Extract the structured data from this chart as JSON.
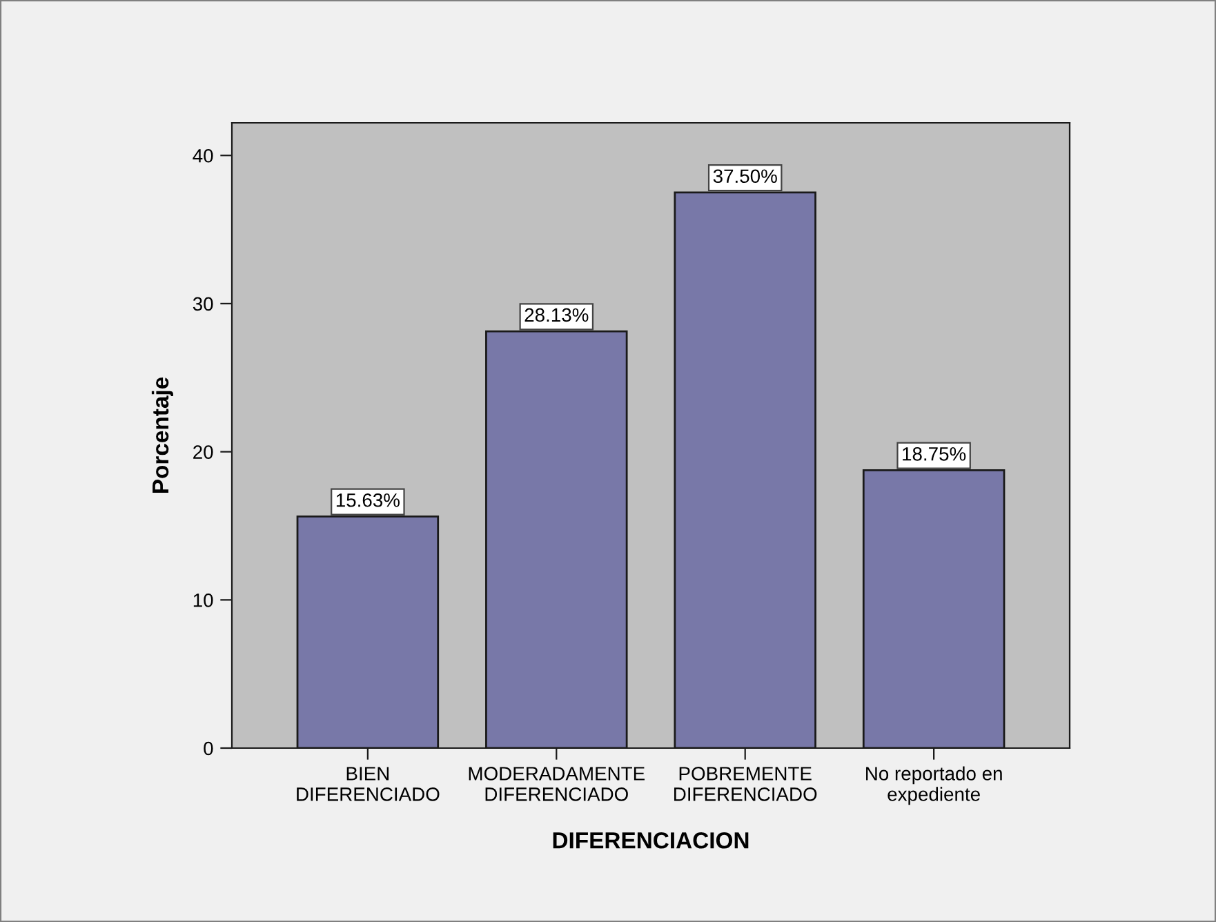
{
  "chart_data": {
    "type": "bar",
    "xlabel": "DIFERENCIACION",
    "ylabel": "Porcentaje",
    "categories": [
      "BIEN\nDIFERENCIADO",
      "MODERADAMENTE\nDIFERENCIADO",
      "POBREMENTE\nDIFERENCIADO",
      "No reportado en\nexpediente"
    ],
    "values": [
      15.63,
      28.13,
      37.5,
      18.75
    ],
    "value_labels": [
      "15.63%",
      "28.13%",
      "37.50%",
      "18.75%"
    ],
    "color": "#7878a8",
    "ylim": [
      0,
      42.2
    ],
    "yticks": [
      0,
      10,
      20,
      30,
      40
    ],
    "grid": false,
    "legend": false
  }
}
